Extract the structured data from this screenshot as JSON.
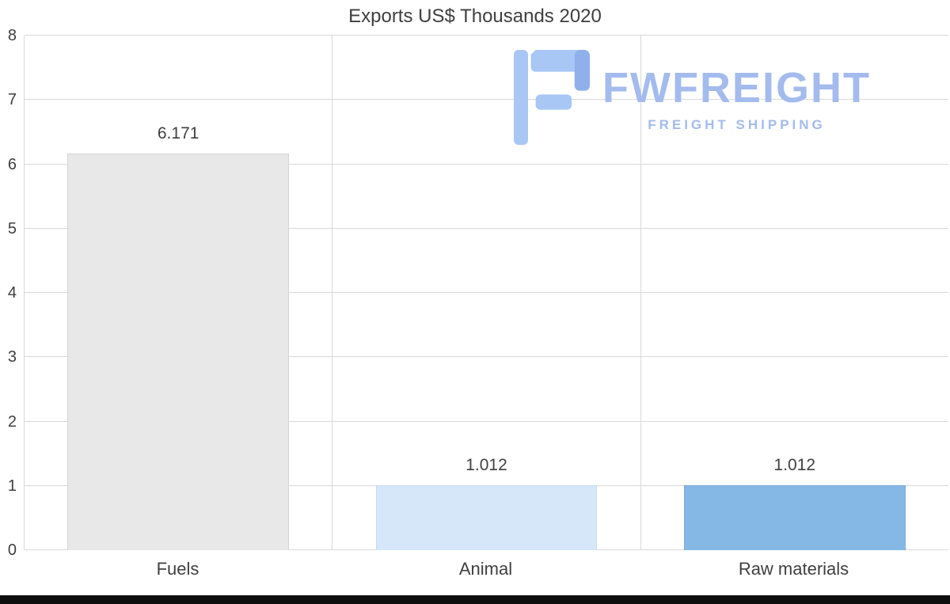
{
  "title": "Exports US$ Thousands 2020",
  "watermark": {
    "name": "FWFREIGHT",
    "subtitle": "FREIGHT SHIPPING",
    "icon": "fwfreight-logo-icon",
    "text_color": "#a4bbee",
    "icon_color": "#a9c7f5",
    "icon_accent_color": "#8fb0ea"
  },
  "chart_data": {
    "type": "bar",
    "title": "Exports US$ Thousands 2020",
    "categories": [
      "Fuels",
      "Animal",
      "Raw materials"
    ],
    "values": [
      6.171,
      1.012,
      1.012
    ],
    "value_labels": [
      "6.171",
      "1.012",
      "1.012"
    ],
    "bar_colors": [
      "#e8e8e8",
      "#d7e7fa",
      "#86b8e6"
    ],
    "bar_border_colors": [
      "#d5d5d5",
      "#c4daf3",
      "#79aadb"
    ],
    "xlabel": "",
    "ylabel": "",
    "ylim": [
      0,
      8
    ],
    "yticks": [
      0,
      1,
      2,
      3,
      4,
      5,
      6,
      7,
      8
    ],
    "grid": true,
    "gridline_color": "#d9d9d9",
    "legend": false
  }
}
